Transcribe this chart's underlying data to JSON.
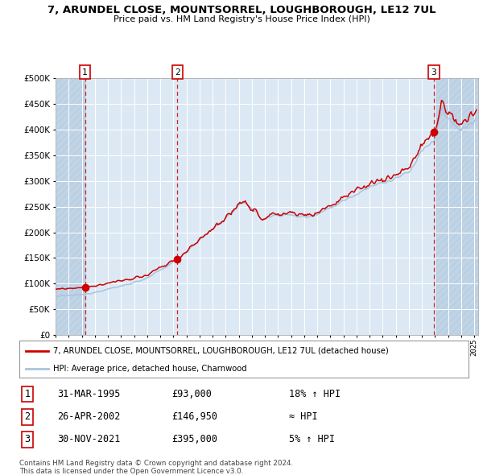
{
  "title": "7, ARUNDEL CLOSE, MOUNTSORREL, LOUGHBOROUGH, LE12 7UL",
  "subtitle": "Price paid vs. HM Land Registry's House Price Index (HPI)",
  "hpi_color": "#a8c4de",
  "price_color": "#cc0000",
  "bg_color": "#dce9f5",
  "hatch_color": "#c0d4e8",
  "ylim": [
    0,
    500000
  ],
  "yticks": [
    0,
    50000,
    100000,
    150000,
    200000,
    250000,
    300000,
    350000,
    400000,
    450000,
    500000
  ],
  "sales": [
    {
      "date_num": 1995.25,
      "price": 93000,
      "label": "1"
    },
    {
      "date_num": 2002.32,
      "price": 146950,
      "label": "2"
    },
    {
      "date_num": 2021.92,
      "price": 395000,
      "label": "3"
    }
  ],
  "legend_entries": [
    "7, ARUNDEL CLOSE, MOUNTSORREL, LOUGHBOROUGH, LE12 7UL (detached house)",
    "HPI: Average price, detached house, Charnwood"
  ],
  "table_rows": [
    {
      "num": "1",
      "date": "31-MAR-1995",
      "price": "£93,000",
      "relation": "18% ↑ HPI"
    },
    {
      "num": "2",
      "date": "26-APR-2002",
      "price": "£146,950",
      "relation": "≈ HPI"
    },
    {
      "num": "3",
      "date": "30-NOV-2021",
      "price": "£395,000",
      "relation": "5% ↑ HPI"
    }
  ],
  "footnote1": "Contains HM Land Registry data © Crown copyright and database right 2024.",
  "footnote2": "This data is licensed under the Open Government Licence v3.0."
}
